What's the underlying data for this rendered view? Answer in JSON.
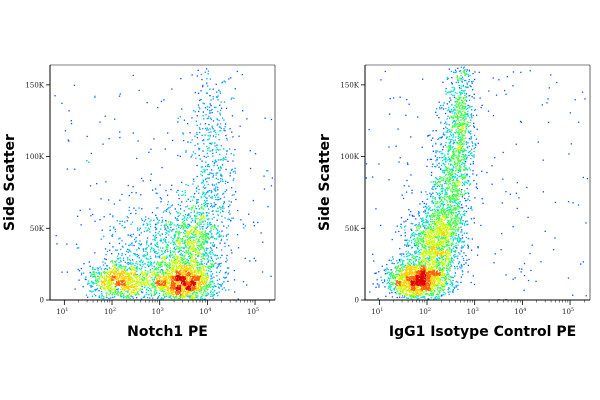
{
  "chart_data": [
    {
      "type": "scatter",
      "subtype": "flow-cytometry-density-dot-plot",
      "xlabel": "Notch1 PE",
      "ylabel": "Side Scatter",
      "x_scale": "log",
      "xlim": [
        5,
        262144
      ],
      "ylim": [
        0,
        163840
      ],
      "x_ticks": [
        {
          "base": "10",
          "exp": "1",
          "value": 10
        },
        {
          "base": "10",
          "exp": "2",
          "value": 100
        },
        {
          "base": "10",
          "exp": "3",
          "value": 1000
        },
        {
          "base": "10",
          "exp": "4",
          "value": 10000
        },
        {
          "base": "10",
          "exp": "5",
          "value": 100000
        }
      ],
      "y_ticks": [
        {
          "label": "0",
          "value": 0
        },
        {
          "label": "50K",
          "value": 50000
        },
        {
          "label": "100K",
          "value": 100000
        },
        {
          "label": "150K",
          "value": 150000
        }
      ],
      "populations": [
        {
          "x": 3000,
          "y": 12000,
          "sx": 0.35,
          "sy": 8000,
          "weight": 0.34
        },
        {
          "x": 150,
          "y": 14000,
          "sx": 0.35,
          "sy": 7000,
          "weight": 0.22
        },
        {
          "x": 5000,
          "y": 40000,
          "sx": 0.3,
          "sy": 15000,
          "weight": 0.18
        },
        {
          "x": 800,
          "y": 35000,
          "sx": 0.5,
          "sy": 18000,
          "weight": 0.14
        },
        {
          "x": 12000,
          "y": 95000,
          "sx": 0.25,
          "sy": 35000,
          "weight": 0.12
        }
      ],
      "colors": [
        "#0000c8",
        "#0050ff",
        "#00a0ff",
        "#00e0c0",
        "#40ff40",
        "#c8ff00",
        "#ffd000",
        "#ff6000",
        "#e00000"
      ]
    },
    {
      "type": "scatter",
      "subtype": "flow-cytometry-density-dot-plot",
      "xlabel": "IgG1 Isotype Control PE",
      "ylabel": "Side Scatter",
      "x_scale": "log",
      "xlim": [
        5,
        262144
      ],
      "ylim": [
        0,
        163840
      ],
      "x_ticks": [
        {
          "base": "10",
          "exp": "1",
          "value": 10
        },
        {
          "base": "10",
          "exp": "2",
          "value": 100
        },
        {
          "base": "10",
          "exp": "3",
          "value": 1000
        },
        {
          "base": "10",
          "exp": "4",
          "value": 10000
        },
        {
          "base": "10",
          "exp": "5",
          "value": 100000
        }
      ],
      "y_ticks": [
        {
          "label": "0",
          "value": 0
        },
        {
          "label": "50K",
          "value": 50000
        },
        {
          "label": "100K",
          "value": 100000
        },
        {
          "label": "150K",
          "value": 150000
        }
      ],
      "populations": [
        {
          "x": 60,
          "y": 14000,
          "sx": 0.3,
          "sy": 7000,
          "weight": 0.35
        },
        {
          "x": 150,
          "y": 40000,
          "sx": 0.28,
          "sy": 15000,
          "weight": 0.3
        },
        {
          "x": 300,
          "y": 80000,
          "sx": 0.2,
          "sy": 25000,
          "weight": 0.2
        },
        {
          "x": 500,
          "y": 125000,
          "sx": 0.15,
          "sy": 25000,
          "weight": 0.15
        }
      ],
      "colors": [
        "#0000c8",
        "#0050ff",
        "#00a0ff",
        "#00e0c0",
        "#40ff40",
        "#c8ff00",
        "#ffd000",
        "#ff6000",
        "#e00000"
      ]
    }
  ]
}
